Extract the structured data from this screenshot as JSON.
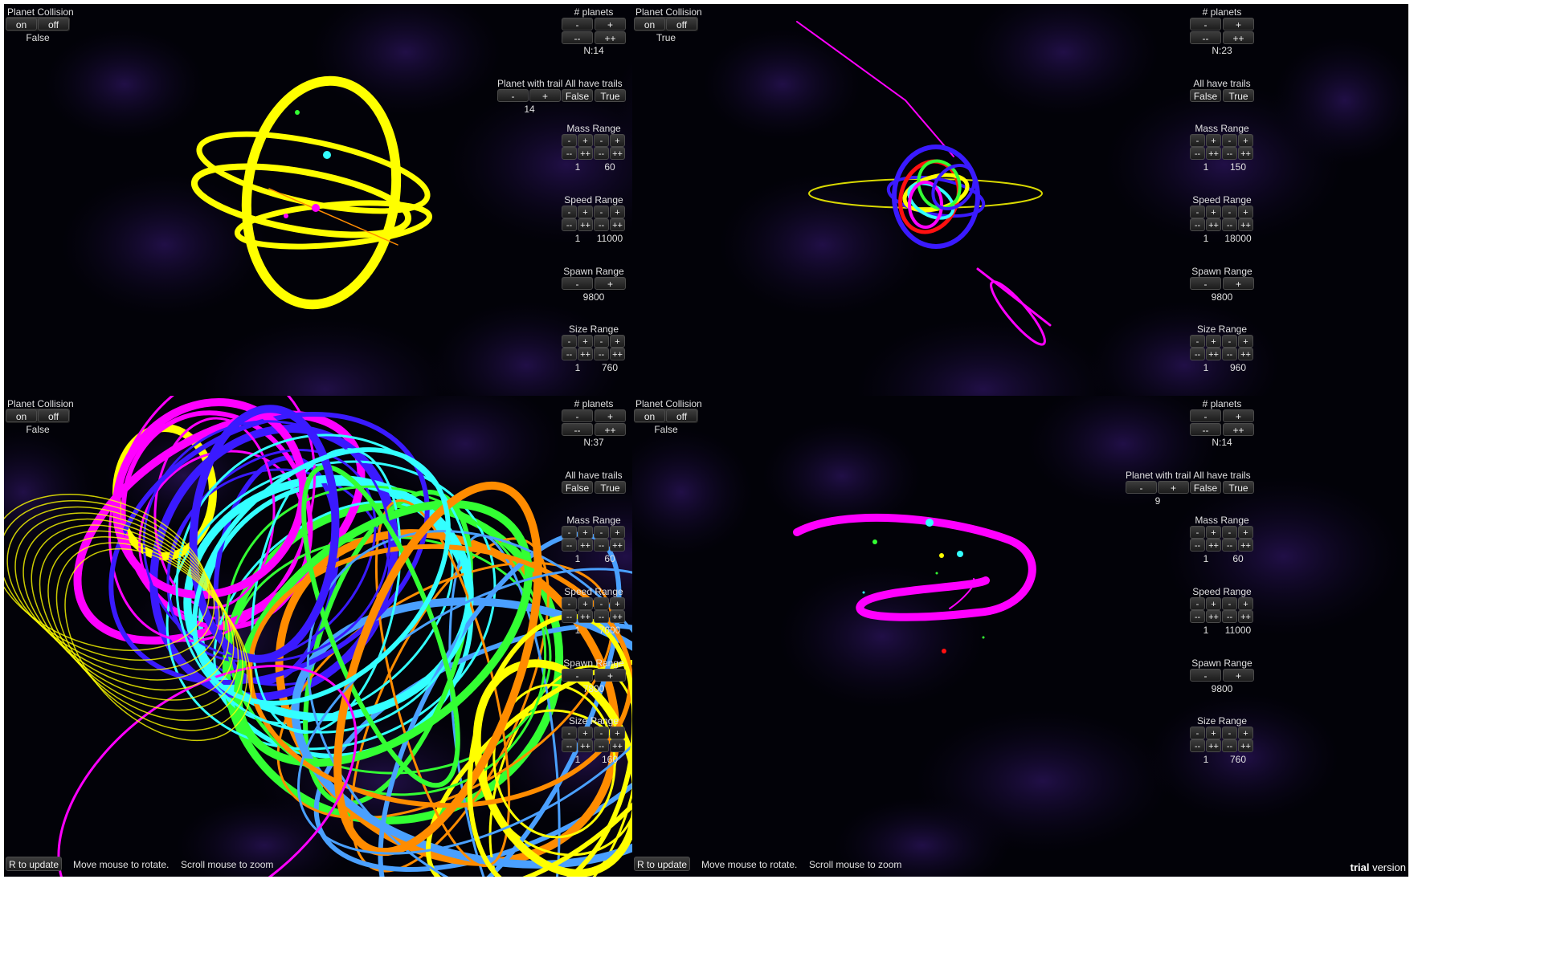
{
  "panels": [
    {
      "id": "top-left",
      "collision": {
        "title": "Planet Collision",
        "on": "on",
        "off": "off",
        "value": "False"
      },
      "planets": {
        "title": "# planets",
        "minus": "-",
        "plus": "+",
        "minus2": "--",
        "plus2": "++",
        "count": "N:14"
      },
      "trail": {
        "show": true,
        "title": "Planet with trail",
        "minus": "-",
        "plus": "+",
        "value": "14"
      },
      "alltrails": {
        "title": "All have trails",
        "false_label": "False",
        "true_label": "True"
      },
      "mass": {
        "title": "Mass Range",
        "min": "1",
        "max": "60"
      },
      "speed": {
        "title": "Speed Range",
        "min": "1",
        "max": "11000"
      },
      "spawn": {
        "title": "Spawn Range",
        "minus": "-",
        "plus": "+",
        "value": "9800"
      },
      "size": {
        "title": "Size Range",
        "min": "1",
        "max": "760"
      }
    },
    {
      "id": "top-right",
      "collision": {
        "title": "Planet Collision",
        "on": "on",
        "off": "off",
        "value": "True"
      },
      "planets": {
        "title": "# planets",
        "minus": "-",
        "plus": "+",
        "minus2": "--",
        "plus2": "++",
        "count": "N:23"
      },
      "trail": {
        "show": false,
        "title": "",
        "minus": "",
        "plus": "",
        "value": ""
      },
      "alltrails": {
        "title": "All have trails",
        "false_label": "False",
        "true_label": "True"
      },
      "mass": {
        "title": "Mass Range",
        "min": "1",
        "max": "150"
      },
      "speed": {
        "title": "Speed Range",
        "min": "1",
        "max": "18000"
      },
      "spawn": {
        "title": "Spawn Range",
        "minus": "-",
        "plus": "+",
        "value": "9800"
      },
      "size": {
        "title": "Size Range",
        "min": "1",
        "max": "960"
      }
    },
    {
      "id": "bottom-left",
      "collision": {
        "title": "Planet Collision",
        "on": "on",
        "off": "off",
        "value": "False"
      },
      "planets": {
        "title": "# planets",
        "minus": "-",
        "plus": "+",
        "minus2": "--",
        "plus2": "++",
        "count": "N:37"
      },
      "trail": {
        "show": false,
        "title": "",
        "minus": "",
        "plus": "",
        "value": ""
      },
      "alltrails": {
        "title": "All have trails",
        "false_label": "False",
        "true_label": "True"
      },
      "mass": {
        "title": "Mass Range",
        "min": "1",
        "max": "60"
      },
      "speed": {
        "title": "Speed Range",
        "min": "1",
        "max": "7000"
      },
      "spawn": {
        "title": "Spawn Range",
        "minus": "-",
        "plus": "+",
        "value": "7800"
      },
      "size": {
        "title": "Size Range",
        "min": "1",
        "max": "160"
      }
    },
    {
      "id": "bottom-right",
      "collision": {
        "title": "Planet Collision",
        "on": "on",
        "off": "off",
        "value": "False"
      },
      "planets": {
        "title": "# planets",
        "minus": "-",
        "plus": "+",
        "minus2": "--",
        "plus2": "++",
        "count": "N:14"
      },
      "trail": {
        "show": true,
        "title": "Planet with trail",
        "minus": "-",
        "plus": "+",
        "value": "9"
      },
      "alltrails": {
        "title": "All have trails",
        "false_label": "False",
        "true_label": "True"
      },
      "mass": {
        "title": "Mass Range",
        "min": "1",
        "max": "60"
      },
      "speed": {
        "title": "Speed Range",
        "min": "1",
        "max": "11000"
      },
      "spawn": {
        "title": "Spawn Range",
        "minus": "-",
        "plus": "+",
        "value": "9800"
      },
      "size": {
        "title": "Size Range",
        "min": "1",
        "max": "760"
      }
    }
  ],
  "range_buttons": {
    "minus": "-",
    "plus": "+",
    "minus2": "--",
    "plus2": "++"
  },
  "footer": {
    "update": "R to update",
    "rotate": "Move mouse to rotate.",
    "zoom": "Scroll mouse to zoom",
    "trial_a": "trial",
    "trial_b": "version"
  },
  "colors": {
    "yellow": "#ffff00",
    "magenta": "#ff00ff",
    "blue": "#3a1aff",
    "cyan": "#33ffff",
    "green": "#33ff33",
    "red": "#ff1010",
    "background": "#020208"
  }
}
